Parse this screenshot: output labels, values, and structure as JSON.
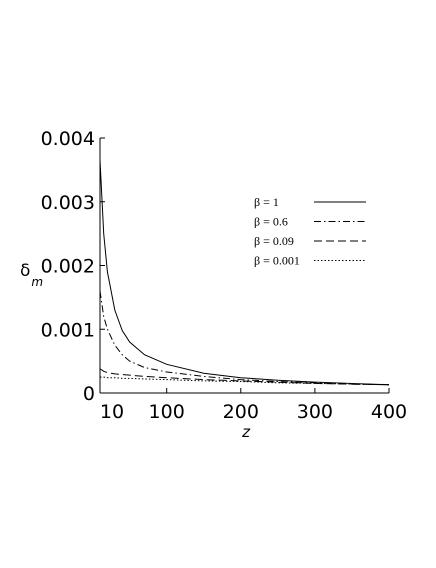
{
  "chart_data": {
    "type": "line",
    "x_label": "z",
    "y_label": {
      "main": "δ",
      "sub": "m"
    },
    "x": [
      10,
      15,
      20,
      30,
      40,
      50,
      70,
      100,
      150,
      200,
      250,
      300,
      350,
      400
    ],
    "series": [
      {
        "name": "β = 1",
        "color": "#000000",
        "dash": "solid",
        "values": [
          0.00365,
          0.0025,
          0.0019,
          0.0013,
          0.00098,
          0.0008,
          0.0006,
          0.00045,
          0.00031,
          0.00024,
          0.0002,
          0.00017,
          0.00015,
          0.00013
        ]
      },
      {
        "name": "β = 0.6",
        "color": "#000000",
        "dash": "dashdot",
        "values": [
          0.0016,
          0.0012,
          0.001,
          0.00075,
          0.0006,
          0.0005,
          0.0004,
          0.00033,
          0.00026,
          0.00021,
          0.00018,
          0.00016,
          0.00014,
          0.00013
        ]
      },
      {
        "name": "β = 0.09",
        "color": "#000000",
        "dash": "dashed",
        "values": [
          0.00038,
          0.00034,
          0.00032,
          0.0003,
          0.00029,
          0.00028,
          0.00026,
          0.00024,
          0.00021,
          0.00019,
          0.00017,
          0.00015,
          0.00014,
          0.00013
        ]
      },
      {
        "name": "β = 0.001",
        "color": "#000000",
        "dash": "dotted",
        "values": [
          0.00025,
          0.00025,
          0.00024,
          0.00024,
          0.00023,
          0.00023,
          0.00022,
          0.00021,
          0.00019,
          0.00018,
          0.00016,
          0.00015,
          0.00014,
          0.00013
        ]
      }
    ],
    "xlim": [
      10,
      400
    ],
    "xticks": [
      10,
      100,
      200,
      300,
      400
    ],
    "ylim": [
      0,
      0.004
    ],
    "yticks": [
      0,
      0.001,
      0.002,
      0.003,
      0.004
    ],
    "legend": "upper right",
    "grid": false
  }
}
